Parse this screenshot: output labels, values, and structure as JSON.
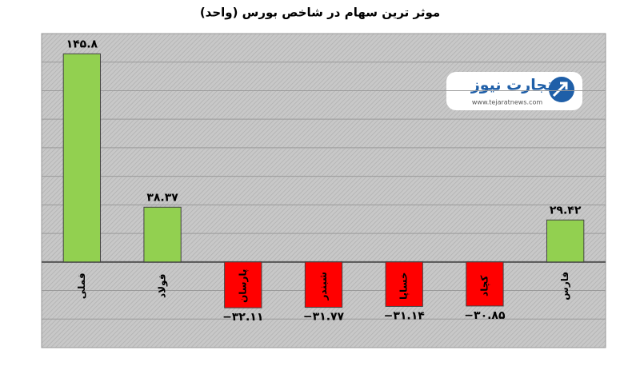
{
  "chart_data": {
    "type": "bar",
    "title": "موثر ترین سهام در شاخص بورس (واحد)",
    "categories": [
      "فملی",
      "فولاد",
      "پارسان",
      "شبندر",
      "خساپا",
      "کچاد",
      "فارس"
    ],
    "values": [
      145.8,
      38.37,
      -32.11,
      -31.77,
      -31.14,
      -30.85,
      29.42
    ],
    "value_labels": [
      "۱۴۵.۸",
      "۳۸.۳۷",
      "−۳۲.۱۱",
      "−۳۱.۷۷",
      "−۳۱.۱۴",
      "−۳۰.۸۵",
      "۲۹.۴۲"
    ],
    "positive_color": "#92d050",
    "negative_color": "#ff0000",
    "ylim": [
      -60,
      160
    ],
    "yticks": [
      -60,
      -40,
      -20,
      0,
      20,
      40,
      60,
      80,
      100,
      120,
      140,
      160
    ],
    "grid": true,
    "show_tick_labels": false,
    "watermark": {
      "name": "تجارت نیوز",
      "url": "www.tejaratnews.com"
    }
  }
}
